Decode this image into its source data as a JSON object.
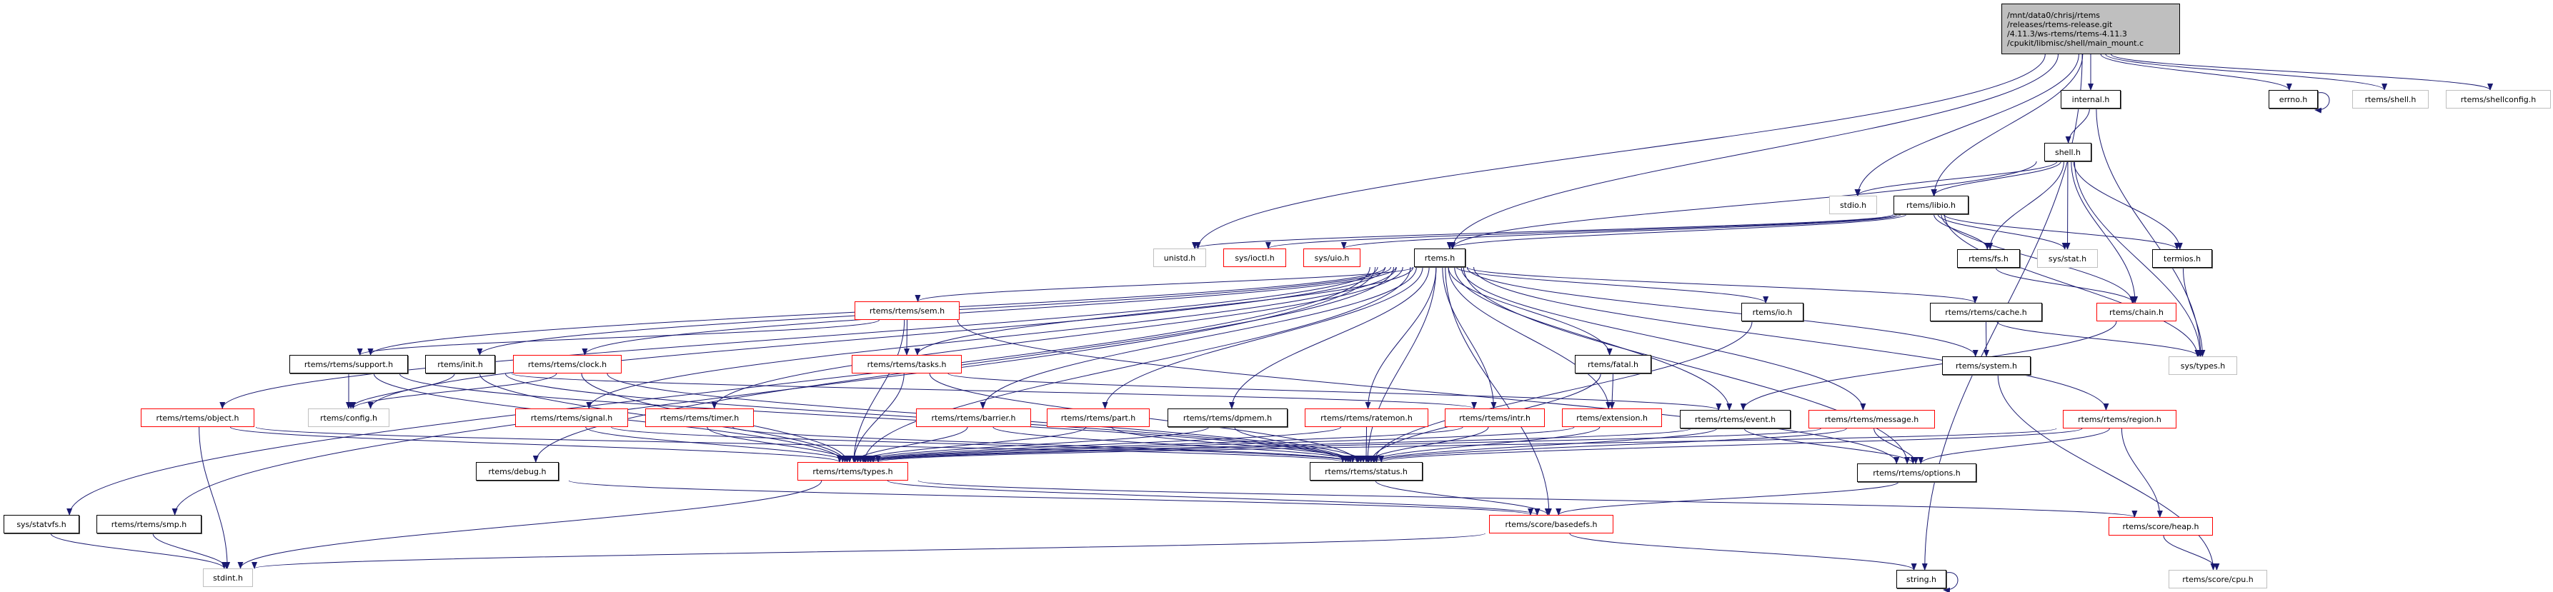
{
  "colors": {
    "edge": "#191970",
    "truncated_border": "#ff0000",
    "undocumented_border": "#bfbfbf",
    "root_fill": "#bfbfbf"
  },
  "root": {
    "lines": [
      "/mnt/data0/chrisj/rtems",
      "/releases/rtems-release.git",
      "/4.11.3/ws-rtems/rtems-4.11.3",
      "/cpukit/libmisc/shell/main_mount.c"
    ]
  },
  "nodes": [
    {
      "id": "internal",
      "label": "internal.h",
      "style": "doc"
    },
    {
      "id": "errno",
      "label": "errno.h",
      "style": "doc"
    },
    {
      "id": "rshell",
      "label": "rtems/shell.h",
      "style": "nodoc"
    },
    {
      "id": "shellconfig",
      "label": "rtems/shellconfig.h",
      "style": "nodoc"
    },
    {
      "id": "shell",
      "label": "shell.h",
      "style": "doc"
    },
    {
      "id": "stdio",
      "label": "stdio.h",
      "style": "nodoc"
    },
    {
      "id": "libio",
      "label": "rtems/libio.h",
      "style": "doc"
    },
    {
      "id": "unistd",
      "label": "unistd.h",
      "style": "nodoc"
    },
    {
      "id": "ioctl",
      "label": "sys/ioctl.h",
      "style": "trunc"
    },
    {
      "id": "uio",
      "label": "sys/uio.h",
      "style": "trunc"
    },
    {
      "id": "rtems",
      "label": "rtems.h",
      "style": "doc"
    },
    {
      "id": "fs",
      "label": "rtems/fs.h",
      "style": "doc"
    },
    {
      "id": "stat",
      "label": "sys/stat.h",
      "style": "nodoc"
    },
    {
      "id": "termios",
      "label": "termios.h",
      "style": "doc"
    },
    {
      "id": "sem",
      "label": "rtems/rtems/sem.h",
      "style": "trunc"
    },
    {
      "id": "io",
      "label": "rtems/io.h",
      "style": "doc"
    },
    {
      "id": "cache",
      "label": "rtems/rtems/cache.h",
      "style": "doc"
    },
    {
      "id": "chain",
      "label": "rtems/chain.h",
      "style": "trunc"
    },
    {
      "id": "support",
      "label": "rtems/rtems/support.h",
      "style": "doc"
    },
    {
      "id": "init",
      "label": "rtems/init.h",
      "style": "doc"
    },
    {
      "id": "clock",
      "label": "rtems/rtems/clock.h",
      "style": "trunc"
    },
    {
      "id": "tasks",
      "label": "rtems/rtems/tasks.h",
      "style": "trunc"
    },
    {
      "id": "fatal",
      "label": "rtems/fatal.h",
      "style": "doc"
    },
    {
      "id": "system",
      "label": "rtems/system.h",
      "style": "doc"
    },
    {
      "id": "systypes",
      "label": "sys/types.h",
      "style": "nodoc"
    },
    {
      "id": "object",
      "label": "rtems/rtems/object.h",
      "style": "trunc"
    },
    {
      "id": "config",
      "label": "rtems/config.h",
      "style": "nodoc"
    },
    {
      "id": "signal",
      "label": "rtems/rtems/signal.h",
      "style": "trunc"
    },
    {
      "id": "timer",
      "label": "rtems/rtems/timer.h",
      "style": "trunc"
    },
    {
      "id": "barrier",
      "label": "rtems/rtems/barrier.h",
      "style": "trunc"
    },
    {
      "id": "part",
      "label": "rtems/rtems/part.h",
      "style": "trunc"
    },
    {
      "id": "dpmem",
      "label": "rtems/rtems/dpmem.h",
      "style": "doc"
    },
    {
      "id": "ratemon",
      "label": "rtems/rtems/ratemon.h",
      "style": "trunc"
    },
    {
      "id": "intr",
      "label": "rtems/rtems/intr.h",
      "style": "trunc"
    },
    {
      "id": "extension",
      "label": "rtems/extension.h",
      "style": "trunc"
    },
    {
      "id": "event",
      "label": "rtems/rtems/event.h",
      "style": "doc"
    },
    {
      "id": "message",
      "label": "rtems/rtems/message.h",
      "style": "trunc"
    },
    {
      "id": "region",
      "label": "rtems/rtems/region.h",
      "style": "trunc"
    },
    {
      "id": "debug",
      "label": "rtems/debug.h",
      "style": "doc"
    },
    {
      "id": "types",
      "label": "rtems/rtems/types.h",
      "style": "trunc"
    },
    {
      "id": "status",
      "label": "rtems/rtems/status.h",
      "style": "doc"
    },
    {
      "id": "options",
      "label": "rtems/rtems/options.h",
      "style": "doc"
    },
    {
      "id": "statvfs",
      "label": "sys/statvfs.h",
      "style": "doc"
    },
    {
      "id": "smp",
      "label": "rtems/rtems/smp.h",
      "style": "doc"
    },
    {
      "id": "basedefs",
      "label": "rtems/score/basedefs.h",
      "style": "trunc"
    },
    {
      "id": "heap",
      "label": "rtems/score/heap.h",
      "style": "trunc"
    },
    {
      "id": "stdint",
      "label": "stdint.h",
      "style": "nodoc"
    },
    {
      "id": "string",
      "label": "string.h",
      "style": "doc"
    },
    {
      "id": "cpu",
      "label": "rtems/score/cpu.h",
      "style": "nodoc"
    }
  ],
  "edges": [
    [
      "root",
      "unistd"
    ],
    [
      "root",
      "stdio"
    ],
    [
      "root",
      "libio"
    ],
    [
      "root",
      "rtems"
    ],
    [
      "root",
      "internal"
    ],
    [
      "root",
      "errno"
    ],
    [
      "root",
      "rshell"
    ],
    [
      "root",
      "shellconfig"
    ],
    [
      "root",
      "string"
    ],
    [
      "internal",
      "shell"
    ],
    [
      "internal",
      "systypes"
    ],
    [
      "errno",
      "errno"
    ],
    [
      "shell",
      "stdio"
    ],
    [
      "shell",
      "libio"
    ],
    [
      "shell",
      "fs"
    ],
    [
      "shell",
      "stat"
    ],
    [
      "shell",
      "chain"
    ],
    [
      "shell",
      "termios"
    ],
    [
      "shell",
      "systypes"
    ],
    [
      "shell",
      "rtems"
    ],
    [
      "libio",
      "rtems"
    ],
    [
      "libio",
      "unistd"
    ],
    [
      "libio",
      "ioctl"
    ],
    [
      "libio",
      "uio"
    ],
    [
      "libio",
      "fs"
    ],
    [
      "libio",
      "stat"
    ],
    [
      "libio",
      "termios"
    ],
    [
      "libio",
      "chain"
    ],
    [
      "libio",
      "systypes"
    ],
    [
      "fs",
      "chain"
    ],
    [
      "termios",
      "systypes"
    ],
    [
      "rtems",
      "statvfs"
    ],
    [
      "rtems",
      "smp"
    ],
    [
      "rtems",
      "object"
    ],
    [
      "rtems",
      "debug"
    ],
    [
      "rtems",
      "support"
    ],
    [
      "rtems",
      "config"
    ],
    [
      "rtems",
      "init"
    ],
    [
      "rtems",
      "clock"
    ],
    [
      "rtems",
      "signal"
    ],
    [
      "rtems",
      "timer"
    ],
    [
      "rtems",
      "types"
    ],
    [
      "rtems",
      "sem"
    ],
    [
      "rtems",
      "tasks"
    ],
    [
      "rtems",
      "barrier"
    ],
    [
      "rtems",
      "part"
    ],
    [
      "rtems",
      "dpmem"
    ],
    [
      "rtems",
      "ratemon"
    ],
    [
      "rtems",
      "intr"
    ],
    [
      "rtems",
      "extension"
    ],
    [
      "rtems",
      "fatal"
    ],
    [
      "rtems",
      "event"
    ],
    [
      "rtems",
      "message"
    ],
    [
      "rtems",
      "region"
    ],
    [
      "rtems",
      "io"
    ],
    [
      "rtems",
      "cache"
    ],
    [
      "rtems",
      "system"
    ],
    [
      "rtems",
      "status"
    ],
    [
      "rtems",
      "options"
    ],
    [
      "rtems",
      "basedefs"
    ],
    [
      "sem",
      "support"
    ],
    [
      "sem",
      "tasks"
    ],
    [
      "sem",
      "types"
    ],
    [
      "sem",
      "options"
    ],
    [
      "tasks",
      "types"
    ],
    [
      "tasks",
      "status"
    ],
    [
      "tasks",
      "event"
    ],
    [
      "support",
      "config"
    ],
    [
      "support",
      "types"
    ],
    [
      "support",
      "status"
    ],
    [
      "init",
      "config"
    ],
    [
      "init",
      "types"
    ],
    [
      "init",
      "status"
    ],
    [
      "init",
      "intr"
    ],
    [
      "clock",
      "config"
    ],
    [
      "clock",
      "types"
    ],
    [
      "clock",
      "status"
    ],
    [
      "object",
      "stdint"
    ],
    [
      "object",
      "types"
    ],
    [
      "object",
      "status"
    ],
    [
      "signal",
      "types"
    ],
    [
      "signal",
      "status"
    ],
    [
      "timer",
      "types"
    ],
    [
      "timer",
      "status"
    ],
    [
      "barrier",
      "types"
    ],
    [
      "barrier",
      "status"
    ],
    [
      "part",
      "types"
    ],
    [
      "part",
      "status"
    ],
    [
      "dpmem",
      "types"
    ],
    [
      "dpmem",
      "status"
    ],
    [
      "ratemon",
      "types"
    ],
    [
      "ratemon",
      "status"
    ],
    [
      "intr",
      "types"
    ],
    [
      "intr",
      "status"
    ],
    [
      "extension",
      "types"
    ],
    [
      "extension",
      "status"
    ],
    [
      "event",
      "types"
    ],
    [
      "event",
      "status"
    ],
    [
      "event",
      "options"
    ],
    [
      "message",
      "types"
    ],
    [
      "message",
      "status"
    ],
    [
      "message",
      "options"
    ],
    [
      "region",
      "types"
    ],
    [
      "region",
      "status"
    ],
    [
      "region",
      "options"
    ],
    [
      "region",
      "heap"
    ],
    [
      "fatal",
      "extension"
    ],
    [
      "fatal",
      "status"
    ],
    [
      "io",
      "status"
    ],
    [
      "cache",
      "system"
    ],
    [
      "cache",
      "systypes"
    ],
    [
      "system",
      "cpu"
    ],
    [
      "chain",
      "event"
    ],
    [
      "types",
      "stdint"
    ],
    [
      "types",
      "heap"
    ],
    [
      "types",
      "basedefs"
    ],
    [
      "status",
      "basedefs"
    ],
    [
      "debug",
      "basedefs"
    ],
    [
      "options",
      "basedefs"
    ],
    [
      "basedefs",
      "stdint"
    ],
    [
      "basedefs",
      "string"
    ],
    [
      "heap",
      "cpu"
    ],
    [
      "string",
      "string"
    ],
    [
      "smp",
      "stdint"
    ],
    [
      "statvfs",
      "stdint"
    ]
  ]
}
